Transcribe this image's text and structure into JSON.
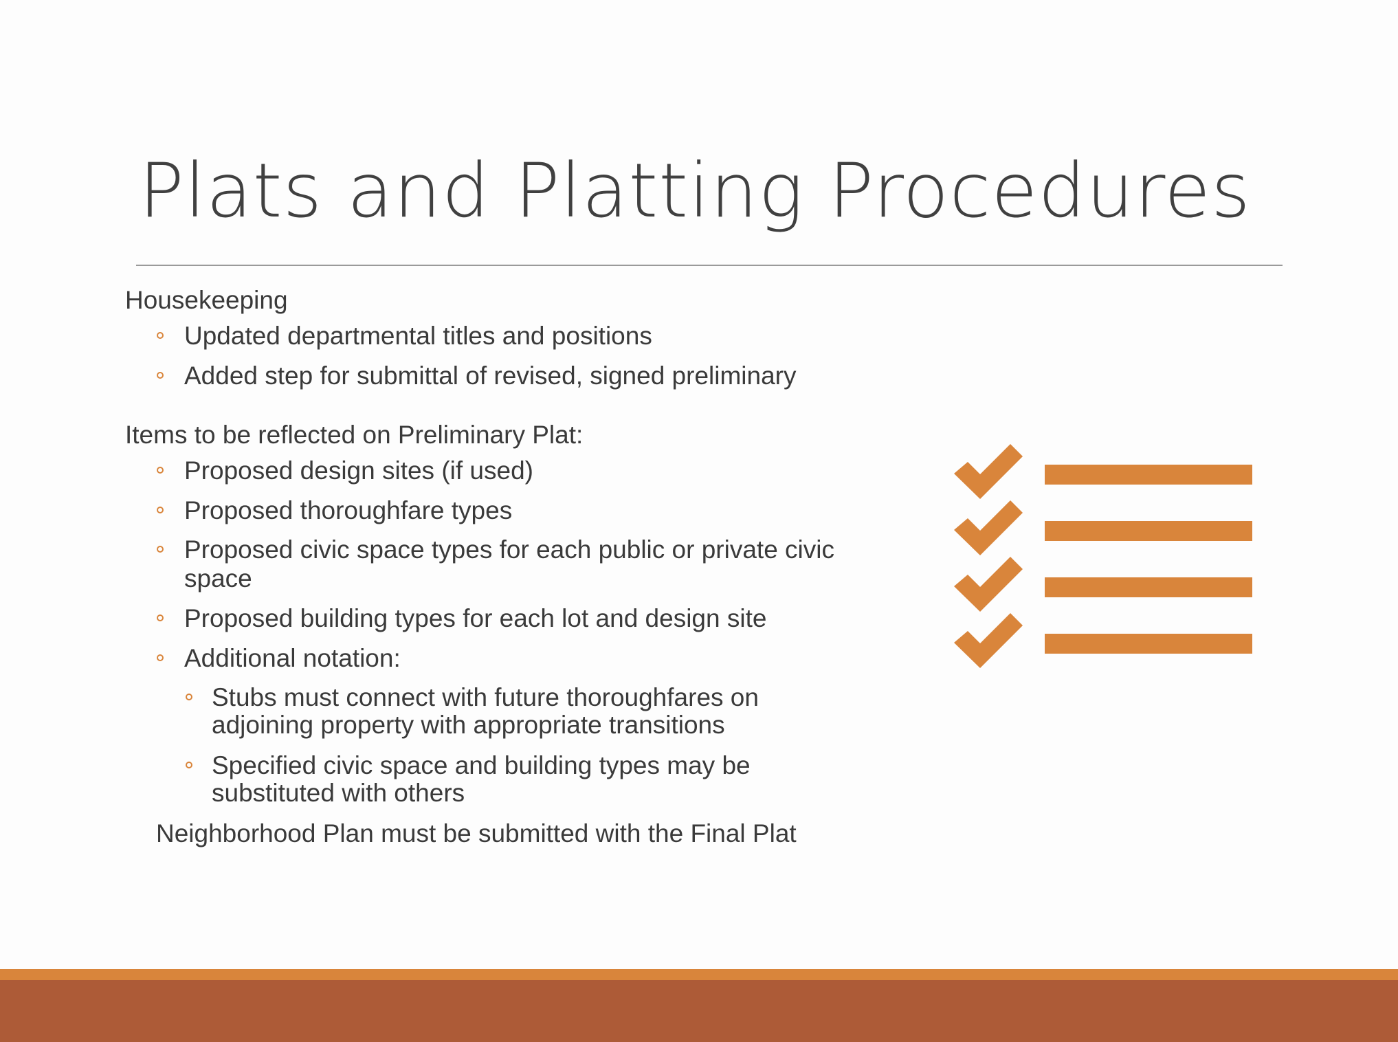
{
  "slide": {
    "title": "Plats and Platting Procedures"
  },
  "content": {
    "housekeeping_heading": "Housekeeping",
    "housekeeping_items": [
      "Updated departmental titles and positions",
      "Added step for submittal of revised, signed preliminary"
    ],
    "preliminary_heading": "Items to be reflected on Preliminary Plat:",
    "preliminary_items": [
      "Proposed design sites (if used)",
      "Proposed thoroughfare types",
      "Proposed civic space types for each public or private civic",
      "space",
      "Proposed building types for each lot and design site",
      "Additional notation:"
    ],
    "notation_items": [
      "Stubs must connect with future thoroughfares on",
      "adjoining property with appropriate transitions",
      "Specified civic space and building types may be",
      "substituted with others"
    ],
    "closing_note": "Neighborhood Plan must be submitted with the Final Plat"
  },
  "colors": {
    "accent": "#d9853b",
    "footer_band": "#ad5b37",
    "title_text": "#404040",
    "body_text": "#3a3a3a"
  },
  "icons": {
    "checklist": "checklist-icon"
  }
}
